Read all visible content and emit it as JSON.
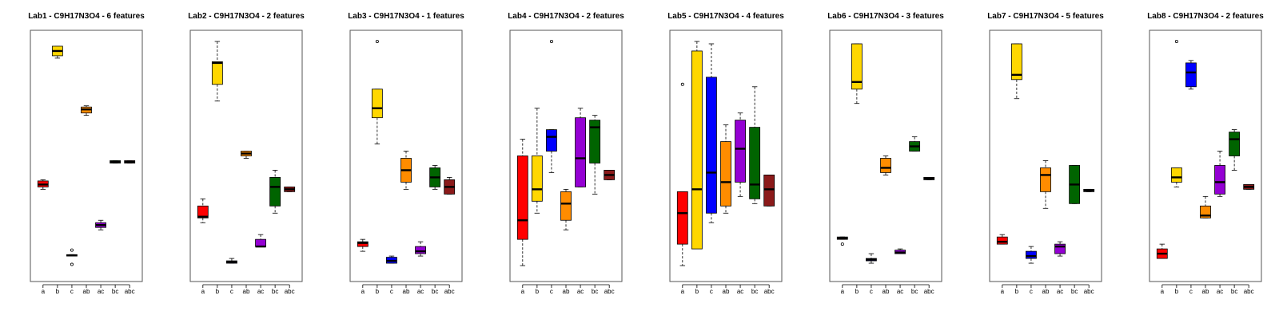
{
  "colors": {
    "a": "#ff0000",
    "b": "#ffd700",
    "c": "#0000ff",
    "ab": "#ff8c00",
    "ac": "#9400d3",
    "bc": "#006400",
    "abc": "#8b1a1a"
  },
  "chart_data": [
    {
      "type": "boxplot",
      "title": "Lab1 - C9H17N3O4 - 6 features",
      "categories": [
        "a",
        "b",
        "c",
        "ab",
        "ac",
        "bc",
        "abc"
      ],
      "ylim": [
        0,
        100
      ],
      "boxes": [
        {
          "whisker_low": 36,
          "q1": 37,
          "median": 38,
          "q3": 39.5,
          "whisker_high": 40,
          "outliers": []
        },
        {
          "whisker_low": 91,
          "q1": 92,
          "median": 94,
          "q3": 96,
          "whisker_high": 96,
          "outliers": []
        },
        {
          "whisker_low": 8,
          "q1": 8,
          "median": 8.3,
          "q3": 8.6,
          "whisker_high": 8.6,
          "outliers": [
            4.5,
            10.5
          ]
        },
        {
          "whisker_low": 67,
          "q1": 68,
          "median": 69.5,
          "q3": 70.5,
          "whisker_high": 71,
          "outliers": []
        },
        {
          "whisker_low": 19,
          "q1": 20,
          "median": 21,
          "q3": 22,
          "whisker_high": 23,
          "outliers": []
        },
        {
          "whisker_low": 47,
          "q1": 47,
          "median": 47.5,
          "q3": 48,
          "whisker_high": 48,
          "outliers": []
        },
        {
          "whisker_low": 47,
          "q1": 47,
          "median": 47.5,
          "q3": 48,
          "whisker_high": 48,
          "outliers": []
        }
      ]
    },
    {
      "type": "boxplot",
      "title": "Lab2 - C9H17N3O4 - 2 features",
      "categories": [
        "a",
        "b",
        "c",
        "ab",
        "ac",
        "bc",
        "abc"
      ],
      "ylim": [
        0,
        100
      ],
      "boxes": [
        {
          "whisker_low": 22,
          "q1": 24,
          "median": 24.5,
          "q3": 29,
          "whisker_high": 32,
          "outliers": []
        },
        {
          "whisker_low": 73,
          "q1": 80,
          "median": 89,
          "q3": 89.5,
          "whisker_high": 98,
          "outliers": []
        },
        {
          "whisker_low": 5,
          "q1": 5,
          "median": 5.5,
          "q3": 6,
          "whisker_high": 7,
          "outliers": []
        },
        {
          "whisker_low": 49,
          "q1": 50,
          "median": 51,
          "q3": 52,
          "whisker_high": 52,
          "outliers": []
        },
        {
          "whisker_low": 12,
          "q1": 12,
          "median": 12,
          "q3": 15,
          "whisker_high": 17,
          "outliers": []
        },
        {
          "whisker_low": 26,
          "q1": 29,
          "median": 37,
          "q3": 41,
          "whisker_high": 44,
          "outliers": []
        },
        {
          "whisker_low": 35,
          "q1": 35,
          "median": 36,
          "q3": 37,
          "whisker_high": 37,
          "outliers": []
        }
      ]
    },
    {
      "type": "boxplot",
      "title": "Lab3 - C9H17N3O4 - 1 features",
      "categories": [
        "a",
        "b",
        "c",
        "ab",
        "ac",
        "bc",
        "abc"
      ],
      "ylim": [
        0,
        100
      ],
      "boxes": [
        {
          "whisker_low": 10,
          "q1": 12,
          "median": 13.5,
          "q3": 14,
          "whisker_high": 15,
          "outliers": []
        },
        {
          "whisker_low": 55,
          "q1": 66,
          "median": 70,
          "q3": 78,
          "whisker_high": 78,
          "outliers": [
            98
          ]
        },
        {
          "whisker_low": 5,
          "q1": 5,
          "median": 6,
          "q3": 7.5,
          "whisker_high": 8,
          "outliers": []
        },
        {
          "whisker_low": 36,
          "q1": 39,
          "median": 44,
          "q3": 49,
          "whisker_high": 52,
          "outliers": []
        },
        {
          "whisker_low": 8,
          "q1": 9,
          "median": 10,
          "q3": 12,
          "whisker_high": 14,
          "outliers": []
        },
        {
          "whisker_low": 36,
          "q1": 37,
          "median": 41,
          "q3": 45,
          "whisker_high": 46,
          "outliers": []
        },
        {
          "whisker_low": 34,
          "q1": 34,
          "median": 37,
          "q3": 40,
          "whisker_high": 41,
          "outliers": []
        }
      ]
    },
    {
      "type": "boxplot",
      "title": "Lab4 - C9H17N3O4 - 2 features",
      "categories": [
        "a",
        "b",
        "c",
        "ab",
        "ac",
        "bc",
        "abc"
      ],
      "ylim": [
        0,
        100
      ],
      "boxes": [
        {
          "whisker_low": 4,
          "q1": 15,
          "median": 23,
          "q3": 50,
          "whisker_high": 57,
          "outliers": []
        },
        {
          "whisker_low": 26,
          "q1": 31,
          "median": 36,
          "q3": 50,
          "whisker_high": 70,
          "outliers": []
        },
        {
          "whisker_low": 43,
          "q1": 52,
          "median": 58,
          "q3": 61,
          "whisker_high": 61,
          "outliers": [
            98
          ]
        },
        {
          "whisker_low": 19,
          "q1": 23,
          "median": 30,
          "q3": 35,
          "whisker_high": 36,
          "outliers": []
        },
        {
          "whisker_low": 37,
          "q1": 37,
          "median": 49,
          "q3": 66,
          "whisker_high": 70,
          "outliers": []
        },
        {
          "whisker_low": 34,
          "q1": 47,
          "median": 62,
          "q3": 65,
          "whisker_high": 67,
          "outliers": []
        },
        {
          "whisker_low": 40,
          "q1": 40,
          "median": 42,
          "q3": 44,
          "whisker_high": 44,
          "outliers": []
        }
      ]
    },
    {
      "type": "boxplot",
      "title": "Lab5 - C9H17N3O4 - 4 features",
      "categories": [
        "a",
        "b",
        "c",
        "ab",
        "ac",
        "bc",
        "abc"
      ],
      "ylim": [
        0,
        100
      ],
      "boxes": [
        {
          "whisker_low": 4,
          "q1": 13,
          "median": 26,
          "q3": 35,
          "whisker_high": 35,
          "outliers": [
            80
          ]
        },
        {
          "whisker_low": 11,
          "q1": 11,
          "median": 36,
          "q3": 94,
          "whisker_high": 98,
          "outliers": []
        },
        {
          "whisker_low": 22,
          "q1": 26,
          "median": 43,
          "q3": 83,
          "whisker_high": 97,
          "outliers": []
        },
        {
          "whisker_low": 26,
          "q1": 29,
          "median": 39,
          "q3": 56,
          "whisker_high": 63,
          "outliers": []
        },
        {
          "whisker_low": 33,
          "q1": 39,
          "median": 53,
          "q3": 65,
          "whisker_high": 68,
          "outliers": []
        },
        {
          "whisker_low": 30,
          "q1": 32,
          "median": 38,
          "q3": 62,
          "whisker_high": 79,
          "outliers": []
        },
        {
          "whisker_low": 29,
          "q1": 29,
          "median": 36,
          "q3": 42,
          "whisker_high": 42,
          "outliers": []
        }
      ]
    },
    {
      "type": "boxplot",
      "title": "Lab6 - C9H17N3O4 - 3 features",
      "categories": [
        "a",
        "b",
        "c",
        "ab",
        "ac",
        "bc",
        "abc"
      ],
      "ylim": [
        0,
        100
      ],
      "boxes": [
        {
          "whisker_low": 15,
          "q1": 15,
          "median": 15.5,
          "q3": 16,
          "whisker_high": 16,
          "outliers": [
            13
          ]
        },
        {
          "whisker_low": 72,
          "q1": 78,
          "median": 81,
          "q3": 97,
          "whisker_high": 97,
          "outliers": []
        },
        {
          "whisker_low": 5,
          "q1": 6,
          "median": 6.5,
          "q3": 7,
          "whisker_high": 9,
          "outliers": []
        },
        {
          "whisker_low": 42,
          "q1": 43,
          "median": 45,
          "q3": 49,
          "whisker_high": 50,
          "outliers": []
        },
        {
          "whisker_low": 9,
          "q1": 9,
          "median": 9.5,
          "q3": 10.5,
          "whisker_high": 11,
          "outliers": []
        },
        {
          "whisker_low": 52,
          "q1": 52,
          "median": 54,
          "q3": 56,
          "whisker_high": 58,
          "outliers": []
        },
        {
          "whisker_low": 40,
          "q1": 40,
          "median": 40.5,
          "q3": 41,
          "whisker_high": 41,
          "outliers": []
        }
      ]
    },
    {
      "type": "boxplot",
      "title": "Lab7 - C9H17N3O4 - 5 features",
      "categories": [
        "a",
        "b",
        "c",
        "ab",
        "ac",
        "bc",
        "abc"
      ],
      "ylim": [
        0,
        100
      ],
      "boxes": [
        {
          "whisker_low": 13,
          "q1": 13,
          "median": 14,
          "q3": 16,
          "whisker_high": 17,
          "outliers": []
        },
        {
          "whisker_low": 74,
          "q1": 82,
          "median": 84,
          "q3": 97,
          "whisker_high": 97,
          "outliers": []
        },
        {
          "whisker_low": 5,
          "q1": 7,
          "median": 8,
          "q3": 10,
          "whisker_high": 12,
          "outliers": []
        },
        {
          "whisker_low": 28,
          "q1": 35,
          "median": 42,
          "q3": 45,
          "whisker_high": 48,
          "outliers": []
        },
        {
          "whisker_low": 8,
          "q1": 9,
          "median": 12,
          "q3": 13,
          "whisker_high": 14,
          "outliers": []
        },
        {
          "whisker_low": 30,
          "q1": 30,
          "median": 38,
          "q3": 46,
          "whisker_high": 46,
          "outliers": []
        },
        {
          "whisker_low": 35,
          "q1": 35,
          "median": 35.5,
          "q3": 36,
          "whisker_high": 36,
          "outliers": []
        }
      ]
    },
    {
      "type": "boxplot",
      "title": "Lab8 - C9H17N3O4 - 2 features",
      "categories": [
        "a",
        "b",
        "c",
        "ab",
        "ac",
        "bc",
        "abc"
      ],
      "ylim": [
        0,
        100
      ],
      "boxes": [
        {
          "whisker_low": 7,
          "q1": 7,
          "median": 9,
          "q3": 11,
          "whisker_high": 13,
          "outliers": []
        },
        {
          "whisker_low": 37,
          "q1": 39,
          "median": 41,
          "q3": 45,
          "whisker_high": 45,
          "outliers": [
            98
          ]
        },
        {
          "whisker_low": 78,
          "q1": 79,
          "median": 85,
          "q3": 89,
          "whisker_high": 90,
          "outliers": []
        },
        {
          "whisker_low": 24,
          "q1": 24,
          "median": 25,
          "q3": 29,
          "whisker_high": 33,
          "outliers": []
        },
        {
          "whisker_low": 33,
          "q1": 34,
          "median": 39,
          "q3": 46,
          "whisker_high": 52,
          "outliers": []
        },
        {
          "whisker_low": 44,
          "q1": 50,
          "median": 57,
          "q3": 60,
          "whisker_high": 61,
          "outliers": []
        },
        {
          "whisker_low": 36,
          "q1": 36,
          "median": 37,
          "q3": 38,
          "whisker_high": 38,
          "outliers": []
        }
      ]
    }
  ]
}
